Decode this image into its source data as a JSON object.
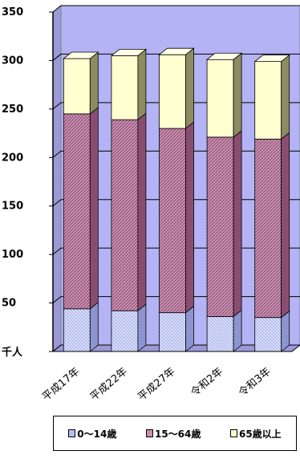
{
  "chart_data": {
    "type": "bar",
    "stacked": true,
    "three_d": true,
    "categories": [
      "平成17年",
      "平成22年",
      "平成27年",
      "令和2年",
      "令和3年"
    ],
    "series": [
      {
        "name": "0～14歳",
        "values": [
          44,
          42,
          40,
          36,
          35
        ],
        "color": "#b7bff0"
      },
      {
        "name": "15～64歳",
        "values": [
          201,
          197,
          190,
          185,
          184
        ],
        "color": "#c990b0"
      },
      {
        "name": "65歳以上",
        "values": [
          57,
          66,
          76,
          80,
          80
        ],
        "color": "#ffffd0"
      }
    ],
    "y_unit_label": "千人",
    "yticks": [
      "50",
      "100",
      "150",
      "200",
      "250",
      "300",
      "350"
    ],
    "ylim": [
      0,
      350
    ],
    "grid": true,
    "legend_position": "bottom",
    "wall_color": "#b3b3f5"
  }
}
